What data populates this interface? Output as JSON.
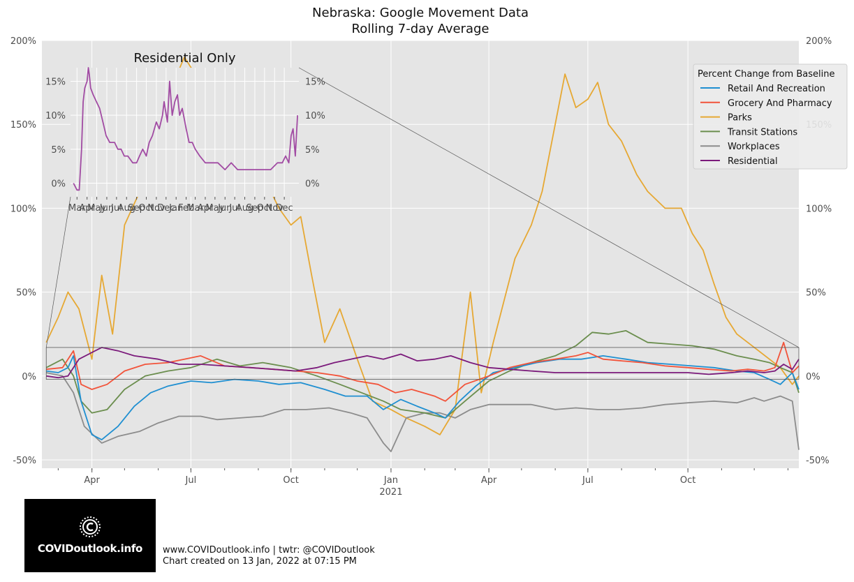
{
  "footer": {
    "line1": "www.COVIDoutlook.info | twtr: @COVIDoutlook",
    "line2": "Chart created on 13 Jan, 2022 at 07:15 PM",
    "logo_text": "COVIDoutlook.info"
  },
  "colors": {
    "Retail And Recreation": "#1f8fd1",
    "Grocery And Pharmacy": "#f2533a",
    "Parks": "#e6a833",
    "Transit Stations": "#6b8e4e",
    "Workplaces": "#8c8c8c",
    "Residential": "#7b1a7b",
    "inset_line": "#a14ba3",
    "panel_bg": "#e5e5e5"
  },
  "chart_data": [
    {
      "type": "line",
      "title": "Nebraska: Google Movement Data",
      "subtitle": "Rolling 7-day Average",
      "legend_title": "Percent Change from Baseline",
      "legend_position": "top-right",
      "grid": true,
      "x_type": "date",
      "xlim": [
        "2020-02-15",
        "2022-01-11"
      ],
      "x_ticks": [
        {
          "date": "2020-04-01",
          "label": "Apr"
        },
        {
          "date": "2020-07-01",
          "label": "Jul"
        },
        {
          "date": "2020-10-01",
          "label": "Oct"
        },
        {
          "date": "2021-01-01",
          "label": "Jan"
        },
        {
          "date": "2021-04-01",
          "label": "Apr"
        },
        {
          "date": "2021-07-01",
          "label": "Jul"
        },
        {
          "date": "2021-10-01",
          "label": "Oct"
        }
      ],
      "x_year_label": "2021",
      "ylim": [
        -55,
        200
      ],
      "y_ticks": [
        -50,
        0,
        50,
        100,
        150,
        200
      ],
      "y_tick_labels": [
        "-50%",
        "0%",
        "50%",
        "100%",
        "150%",
        "200%"
      ],
      "series": [
        {
          "name": "Retail And Recreation",
          "x": [
            "2020-02-19",
            "2020-03-01",
            "2020-03-10",
            "2020-03-15",
            "2020-03-22",
            "2020-04-01",
            "2020-04-10",
            "2020-04-25",
            "2020-05-10",
            "2020-05-25",
            "2020-06-10",
            "2020-07-01",
            "2020-07-20",
            "2020-08-10",
            "2020-09-01",
            "2020-09-20",
            "2020-10-10",
            "2020-11-01",
            "2020-11-20",
            "2020-12-10",
            "2020-12-25",
            "2021-01-10",
            "2021-01-25",
            "2021-02-10",
            "2021-02-20",
            "2021-03-05",
            "2021-03-20",
            "2021-04-05",
            "2021-04-25",
            "2021-05-15",
            "2021-06-05",
            "2021-06-25",
            "2021-07-15",
            "2021-08-05",
            "2021-08-25",
            "2021-09-15",
            "2021-10-05",
            "2021-10-25",
            "2021-11-15",
            "2021-12-01",
            "2021-12-15",
            "2021-12-25",
            "2022-01-05",
            "2022-01-11"
          ],
          "values": [
            3,
            2,
            5,
            12,
            -15,
            -35,
            -38,
            -30,
            -18,
            -10,
            -6,
            -3,
            -4,
            -2,
            -3,
            -5,
            -4,
            -8,
            -12,
            -12,
            -20,
            -14,
            -18,
            -22,
            -25,
            -15,
            -6,
            2,
            5,
            8,
            10,
            10,
            12,
            10,
            8,
            7,
            6,
            5,
            3,
            2,
            -2,
            -5,
            2,
            -8
          ]
        },
        {
          "name": "Grocery And Pharmacy",
          "x": [
            "2020-02-19",
            "2020-03-05",
            "2020-03-15",
            "2020-03-22",
            "2020-04-01",
            "2020-04-15",
            "2020-05-01",
            "2020-05-20",
            "2020-06-10",
            "2020-06-25",
            "2020-07-10",
            "2020-08-01",
            "2020-08-25",
            "2020-09-15",
            "2020-10-05",
            "2020-10-25",
            "2020-11-15",
            "2020-12-01",
            "2020-12-20",
            "2021-01-05",
            "2021-01-20",
            "2021-02-10",
            "2021-02-20",
            "2021-03-10",
            "2021-04-01",
            "2021-04-20",
            "2021-05-10",
            "2021-06-01",
            "2021-06-20",
            "2021-07-01",
            "2021-07-15",
            "2021-08-01",
            "2021-08-20",
            "2021-09-10",
            "2021-10-01",
            "2021-10-20",
            "2021-11-10",
            "2021-11-25",
            "2021-12-10",
            "2021-12-20",
            "2021-12-28",
            "2022-01-05",
            "2022-01-11"
          ],
          "values": [
            4,
            5,
            15,
            -5,
            -8,
            -5,
            3,
            7,
            8,
            10,
            12,
            6,
            5,
            4,
            3,
            2,
            0,
            -3,
            -5,
            -10,
            -8,
            -12,
            -15,
            -5,
            0,
            5,
            8,
            10,
            12,
            14,
            10,
            9,
            8,
            6,
            5,
            4,
            3,
            4,
            3,
            5,
            20,
            2,
            6
          ]
        },
        {
          "name": "Parks",
          "x": [
            "2020-02-19",
            "2020-03-01",
            "2020-03-10",
            "2020-03-20",
            "2020-04-01",
            "2020-04-10",
            "2020-04-20",
            "2020-05-01",
            "2020-05-15",
            "2020-06-01",
            "2020-06-15",
            "2020-06-25",
            "2020-07-05",
            "2020-07-20",
            "2020-08-05",
            "2020-08-20",
            "2020-09-05",
            "2020-09-20",
            "2020-10-01",
            "2020-10-10",
            "2020-10-20",
            "2020-11-01",
            "2020-11-15",
            "2020-12-01",
            "2020-12-15",
            "2021-01-01",
            "2021-01-15",
            "2021-02-01",
            "2021-02-15",
            "2021-03-01",
            "2021-03-15",
            "2021-03-25",
            "2021-04-05",
            "2021-04-15",
            "2021-04-25",
            "2021-05-10",
            "2021-05-20",
            "2021-06-01",
            "2021-06-10",
            "2021-06-20",
            "2021-07-01",
            "2021-07-10",
            "2021-07-20",
            "2021-08-01",
            "2021-08-15",
            "2021-08-25",
            "2021-09-10",
            "2021-09-25",
            "2021-10-05",
            "2021-10-15",
            "2021-10-25",
            "2021-11-05",
            "2021-11-15",
            "2021-11-25",
            "2021-12-05",
            "2021-12-15",
            "2021-12-25",
            "2022-01-05",
            "2022-01-11"
          ],
          "values": [
            20,
            35,
            50,
            40,
            10,
            60,
            25,
            90,
            110,
            140,
            175,
            190,
            180,
            170,
            150,
            135,
            120,
            100,
            90,
            95,
            60,
            20,
            40,
            10,
            -15,
            -20,
            -25,
            -30,
            -35,
            -20,
            50,
            -10,
            20,
            45,
            70,
            90,
            110,
            150,
            180,
            160,
            165,
            175,
            150,
            140,
            120,
            110,
            100,
            100,
            85,
            75,
            55,
            35,
            25,
            20,
            15,
            10,
            5,
            -5,
            0
          ]
        },
        {
          "name": "Transit Stations",
          "x": [
            "2020-02-19",
            "2020-03-05",
            "2020-03-15",
            "2020-03-22",
            "2020-04-01",
            "2020-04-15",
            "2020-05-01",
            "2020-05-20",
            "2020-06-10",
            "2020-07-01",
            "2020-07-25",
            "2020-08-15",
            "2020-09-05",
            "2020-10-01",
            "2020-10-25",
            "2020-11-15",
            "2020-12-05",
            "2020-12-25",
            "2021-01-10",
            "2021-02-01",
            "2021-02-20",
            "2021-03-10",
            "2021-04-01",
            "2021-04-20",
            "2021-05-10",
            "2021-06-01",
            "2021-06-20",
            "2021-07-05",
            "2021-07-20",
            "2021-08-05",
            "2021-08-25",
            "2021-09-15",
            "2021-10-05",
            "2021-10-25",
            "2021-11-15",
            "2021-12-01",
            "2021-12-15",
            "2021-12-25",
            "2022-01-05",
            "2022-01-11"
          ],
          "values": [
            5,
            10,
            0,
            -15,
            -22,
            -20,
            -8,
            0,
            3,
            5,
            10,
            6,
            8,
            5,
            0,
            -5,
            -10,
            -15,
            -20,
            -22,
            -25,
            -15,
            -3,
            3,
            8,
            12,
            18,
            26,
            25,
            27,
            20,
            19,
            18,
            16,
            12,
            10,
            8,
            5,
            2,
            -10
          ]
        },
        {
          "name": "Workplaces",
          "x": [
            "2020-02-19",
            "2020-03-05",
            "2020-03-15",
            "2020-03-25",
            "2020-04-10",
            "2020-04-25",
            "2020-05-15",
            "2020-06-01",
            "2020-06-20",
            "2020-07-10",
            "2020-07-25",
            "2020-08-15",
            "2020-09-05",
            "2020-09-25",
            "2020-10-15",
            "2020-11-05",
            "2020-11-25",
            "2020-12-10",
            "2020-12-25",
            "2021-01-01",
            "2021-01-15",
            "2021-02-01",
            "2021-02-15",
            "2021-03-01",
            "2021-03-15",
            "2021-04-01",
            "2021-04-20",
            "2021-05-10",
            "2021-06-01",
            "2021-06-20",
            "2021-07-10",
            "2021-07-30",
            "2021-08-20",
            "2021-09-10",
            "2021-10-01",
            "2021-10-25",
            "2021-11-15",
            "2021-12-01",
            "2021-12-10",
            "2021-12-25",
            "2022-01-05",
            "2022-01-11"
          ],
          "values": [
            2,
            0,
            -10,
            -30,
            -40,
            -36,
            -33,
            -28,
            -24,
            -24,
            -26,
            -25,
            -24,
            -20,
            -20,
            -19,
            -22,
            -25,
            -40,
            -45,
            -25,
            -22,
            -22,
            -25,
            -20,
            -17,
            -17,
            -17,
            -20,
            -19,
            -20,
            -20,
            -19,
            -17,
            -16,
            -15,
            -16,
            -13,
            -15,
            -12,
            -15,
            -44
          ]
        },
        {
          "name": "Residential",
          "x": [
            "2020-02-19",
            "2020-03-01",
            "2020-03-10",
            "2020-03-20",
            "2020-04-01",
            "2020-04-10",
            "2020-04-25",
            "2020-05-10",
            "2020-06-01",
            "2020-06-20",
            "2020-07-10",
            "2020-08-01",
            "2020-08-25",
            "2020-09-15",
            "2020-10-05",
            "2020-10-25",
            "2020-11-10",
            "2020-11-25",
            "2020-12-10",
            "2020-12-25",
            "2021-01-10",
            "2021-01-25",
            "2021-02-10",
            "2021-02-25",
            "2021-03-15",
            "2021-04-01",
            "2021-04-20",
            "2021-05-10",
            "2021-06-01",
            "2021-06-20",
            "2021-07-10",
            "2021-07-30",
            "2021-08-20",
            "2021-09-10",
            "2021-10-01",
            "2021-10-20",
            "2021-11-10",
            "2021-11-25",
            "2021-12-10",
            "2021-12-20",
            "2021-12-28",
            "2022-01-05",
            "2022-01-11"
          ],
          "values": [
            0,
            -1,
            0,
            10,
            14,
            17,
            15,
            12,
            10,
            7,
            7,
            6,
            5,
            4,
            3,
            5,
            8,
            10,
            12,
            10,
            13,
            9,
            10,
            12,
            8,
            5,
            4,
            3,
            2,
            2,
            2,
            2,
            2,
            2,
            2,
            1,
            2,
            3,
            2,
            3,
            7,
            4,
            10
          ]
        }
      ]
    },
    {
      "type": "line",
      "title": "Residential Only",
      "x_type": "date",
      "xlim": [
        "2020-02-10",
        "2022-01-15"
      ],
      "x_tick_labels": [
        "Mar",
        "Apr",
        "May",
        "Jun",
        "Jul",
        "Aug",
        "Sep",
        "Oct",
        "Nov",
        "Dec",
        "Jan",
        "Feb",
        "Mar",
        "Apr",
        "May",
        "Jun",
        "Jul",
        "Aug",
        "Sep",
        "Oct",
        "Nov",
        "Dec"
      ],
      "ylim": [
        -2,
        17
      ],
      "y_ticks": [
        0,
        5,
        10,
        15
      ],
      "y_tick_labels": [
        "0%",
        "5%",
        "10%",
        "15%"
      ],
      "grid": true,
      "series": [
        {
          "name": "Residential",
          "x": [
            "2020-02-19",
            "2020-03-01",
            "2020-03-08",
            "2020-03-15",
            "2020-03-20",
            "2020-03-25",
            "2020-04-01",
            "2020-04-05",
            "2020-04-08",
            "2020-04-12",
            "2020-04-20",
            "2020-04-30",
            "2020-05-10",
            "2020-05-20",
            "2020-05-30",
            "2020-06-10",
            "2020-06-25",
            "2020-07-05",
            "2020-07-15",
            "2020-07-25",
            "2020-08-05",
            "2020-08-20",
            "2020-09-01",
            "2020-09-10",
            "2020-09-20",
            "2020-10-01",
            "2020-10-10",
            "2020-10-20",
            "2020-11-01",
            "2020-11-10",
            "2020-11-20",
            "2020-11-25",
            "2020-12-05",
            "2020-12-12",
            "2020-12-20",
            "2020-12-28",
            "2021-01-05",
            "2021-01-12",
            "2021-01-20",
            "2021-02-01",
            "2021-02-10",
            "2021-02-20",
            "2021-03-01",
            "2021-03-15",
            "2021-04-01",
            "2021-04-20",
            "2021-05-10",
            "2021-06-01",
            "2021-06-20",
            "2021-07-10",
            "2021-07-30",
            "2021-08-20",
            "2021-09-10",
            "2021-10-01",
            "2021-10-20",
            "2021-11-10",
            "2021-11-25",
            "2021-12-05",
            "2021-12-15",
            "2021-12-22",
            "2021-12-28",
            "2022-01-04",
            "2022-01-11"
          ],
          "values": [
            0,
            -1,
            -1,
            5,
            12,
            14,
            15,
            17,
            16,
            14,
            13,
            12,
            11,
            9,
            7,
            6,
            6,
            5,
            5,
            4,
            4,
            3,
            3,
            4,
            5,
            4,
            6,
            7,
            9,
            8,
            10,
            12,
            9,
            15,
            10,
            12,
            13,
            10,
            11,
            8,
            6,
            6,
            5,
            4,
            3,
            3,
            3,
            2,
            3,
            2,
            2,
            2,
            2,
            2,
            2,
            3,
            3,
            4,
            3,
            7,
            8,
            4,
            10
          ]
        }
      ]
    }
  ]
}
